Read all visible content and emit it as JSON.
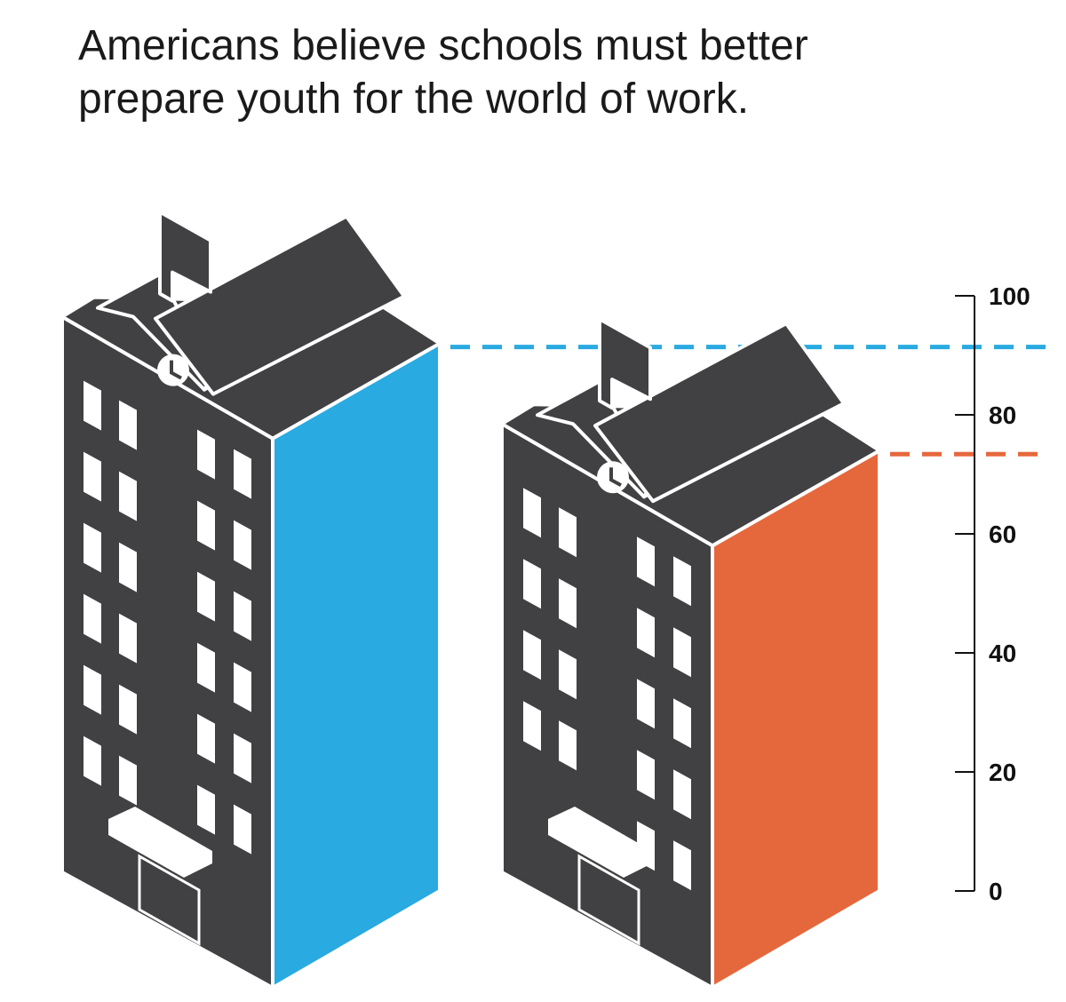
{
  "title": {
    "line1": "Americans believe schools must better",
    "line2": "prepare youth for the world of work."
  },
  "chart_data": {
    "type": "bar",
    "style": "isometric school buildings",
    "categories": [
      "",
      ""
    ],
    "series": [
      {
        "values": [
          92,
          74
        ]
      }
    ],
    "colors": [
      "#29aae1",
      "#e5683c"
    ],
    "building_color": "#414042",
    "ylim": [
      0,
      100
    ],
    "yticks": [
      "0",
      "20",
      "40",
      "60",
      "80",
      "100"
    ],
    "reference_lines": "dashed lines at each bar value",
    "grid": false,
    "legend": "none"
  }
}
